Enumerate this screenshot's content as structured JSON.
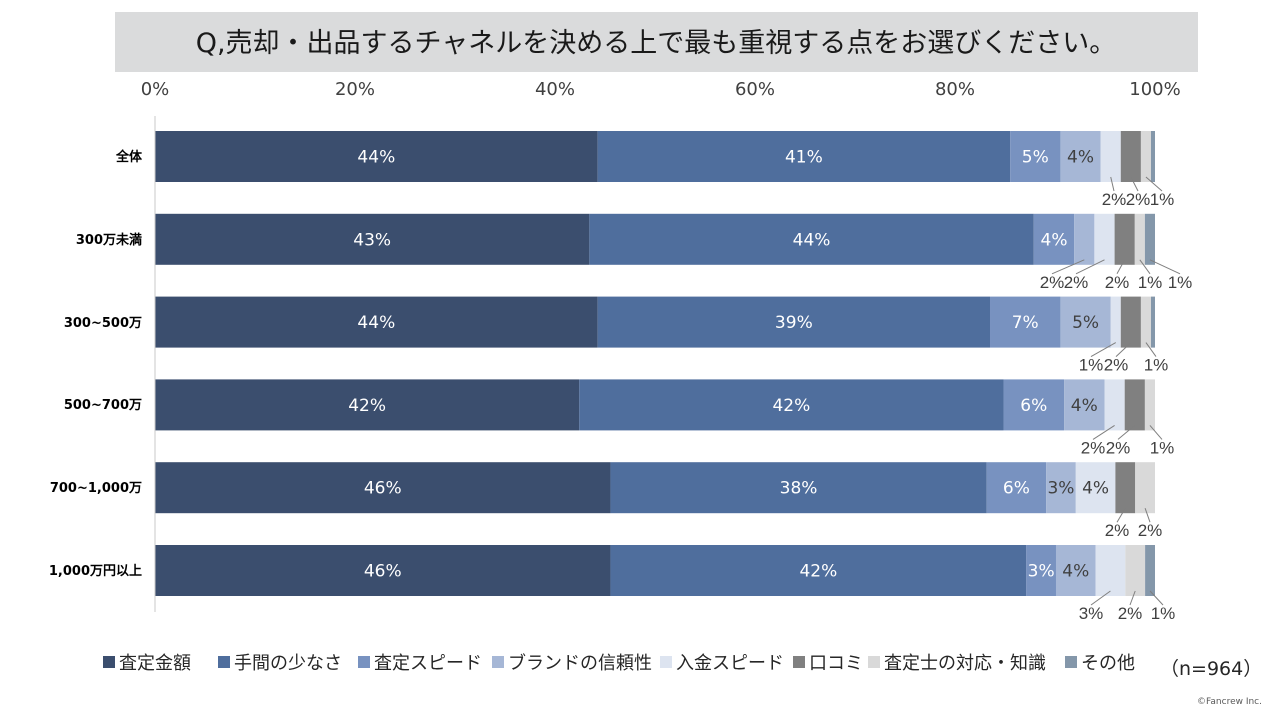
{
  "chart_data": {
    "type": "bar",
    "orientation": "horizontal",
    "stacked": "100%",
    "title": "Q,売却・出品するチャネルを決める上で最も重視する点をお選びください。",
    "categories": [
      "全体",
      "300万未満",
      "300~500万",
      "500~700万",
      "700~1,000万",
      "1,000万円以上"
    ],
    "x_ticks": [
      "0%",
      "20%",
      "40%",
      "60%",
      "80%",
      "100%"
    ],
    "xlim": [
      0,
      100
    ],
    "unit": "%",
    "grid": false,
    "legend_position": "bottom",
    "series": [
      {
        "name": "査定金額",
        "color": "#3b4e6e",
        "values": [
          44,
          43,
          44,
          42,
          46,
          46
        ]
      },
      {
        "name": "手間の少なさ",
        "color": "#4f6e9d",
        "values": [
          41,
          44,
          39,
          42,
          38,
          42
        ]
      },
      {
        "name": "査定スピード",
        "color": "#7892c0",
        "values": [
          5,
          4,
          7,
          6,
          6,
          3
        ]
      },
      {
        "name": "ブランドの信頼性",
        "color": "#a6b7d6",
        "values": [
          4,
          2,
          5,
          4,
          3,
          4
        ]
      },
      {
        "name": "入金スピード",
        "color": "#dde4f0",
        "values": [
          2,
          2,
          1,
          2,
          4,
          3
        ]
      },
      {
        "name": "口コミ",
        "color": "#808080",
        "values": [
          2,
          2,
          2,
          2,
          2,
          0
        ]
      },
      {
        "name": "査定士の対応・知識",
        "color": "#d9d9d9",
        "values": [
          1,
          1,
          1,
          1,
          2,
          2
        ]
      },
      {
        "name": "その他",
        "color": "#8497aa",
        "values": [
          0.4,
          1,
          0.4,
          0,
          0,
          1
        ]
      }
    ]
  },
  "sample_size": "（n=964）",
  "copyright": "©Fancrew Inc."
}
